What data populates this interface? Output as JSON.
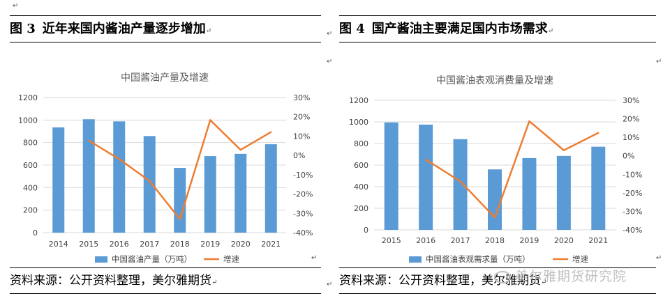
{
  "left": {
    "fig_number": "图 3",
    "fig_title": "近年来国内酱油产量逐步增加",
    "source": "资料来源：公开资料整理，美尔雅期货"
  },
  "right": {
    "fig_number": "图 4",
    "fig_title": "国产酱油主要满足国内市场需求",
    "source": "资料来源：公开资料整理，美尔雅期货"
  },
  "watermark": "美尔雅期货研究院",
  "return_mark": "↵",
  "colors": {
    "bar": "#5b9bd5",
    "line": "#ed7d31",
    "grid": "#d9d9d9"
  },
  "chart_data": [
    {
      "type": "bar",
      "title": "中国酱油产量及增速",
      "categories": [
        "2014",
        "2015",
        "2016",
        "2017",
        "2018",
        "2019",
        "2020",
        "2021"
      ],
      "series": [
        {
          "name": "中国酱油产量（万吨）",
          "kind": "bar",
          "axis": "left",
          "values": [
            935,
            1007,
            988,
            858,
            575,
            680,
            700,
            785
          ]
        },
        {
          "name": "增速",
          "kind": "line",
          "axis": "right",
          "values": [
            null,
            7.7,
            -1.9,
            -13.2,
            -33.0,
            18.3,
            2.9,
            12.1
          ]
        }
      ],
      "ylim": [
        0,
        1200
      ],
      "yticks": [
        0,
        200,
        400,
        600,
        800,
        1000,
        1200
      ],
      "y2lim": [
        -40,
        30
      ],
      "y2ticks": [
        "30%",
        "20%",
        "10%",
        "0%",
        "-10%",
        "-20%",
        "-30%",
        "-40%"
      ],
      "legend": "bottom",
      "grid": true
    },
    {
      "type": "bar",
      "title": "中国酱油表观消费量及增速",
      "categories": [
        "2015",
        "2016",
        "2017",
        "2018",
        "2019",
        "2020",
        "2021"
      ],
      "series": [
        {
          "name": "中国酱油表观需求量（万吨）",
          "kind": "bar",
          "axis": "left",
          "values": [
            995,
            975,
            840,
            560,
            665,
            685,
            770
          ]
        },
        {
          "name": "增速",
          "kind": "line",
          "axis": "right",
          "values": [
            null,
            -2.0,
            -13.8,
            -33.3,
            18.7,
            3.0,
            12.4
          ]
        }
      ],
      "ylim": [
        0,
        1200
      ],
      "yticks": [
        0,
        200,
        400,
        600,
        800,
        1000,
        1200
      ],
      "y2lim": [
        -40,
        30
      ],
      "y2ticks": [
        "30%",
        "20%",
        "10%",
        "0%",
        "-10%",
        "-20%",
        "-30%",
        "-40%"
      ],
      "legend": "bottom",
      "grid": true
    }
  ]
}
